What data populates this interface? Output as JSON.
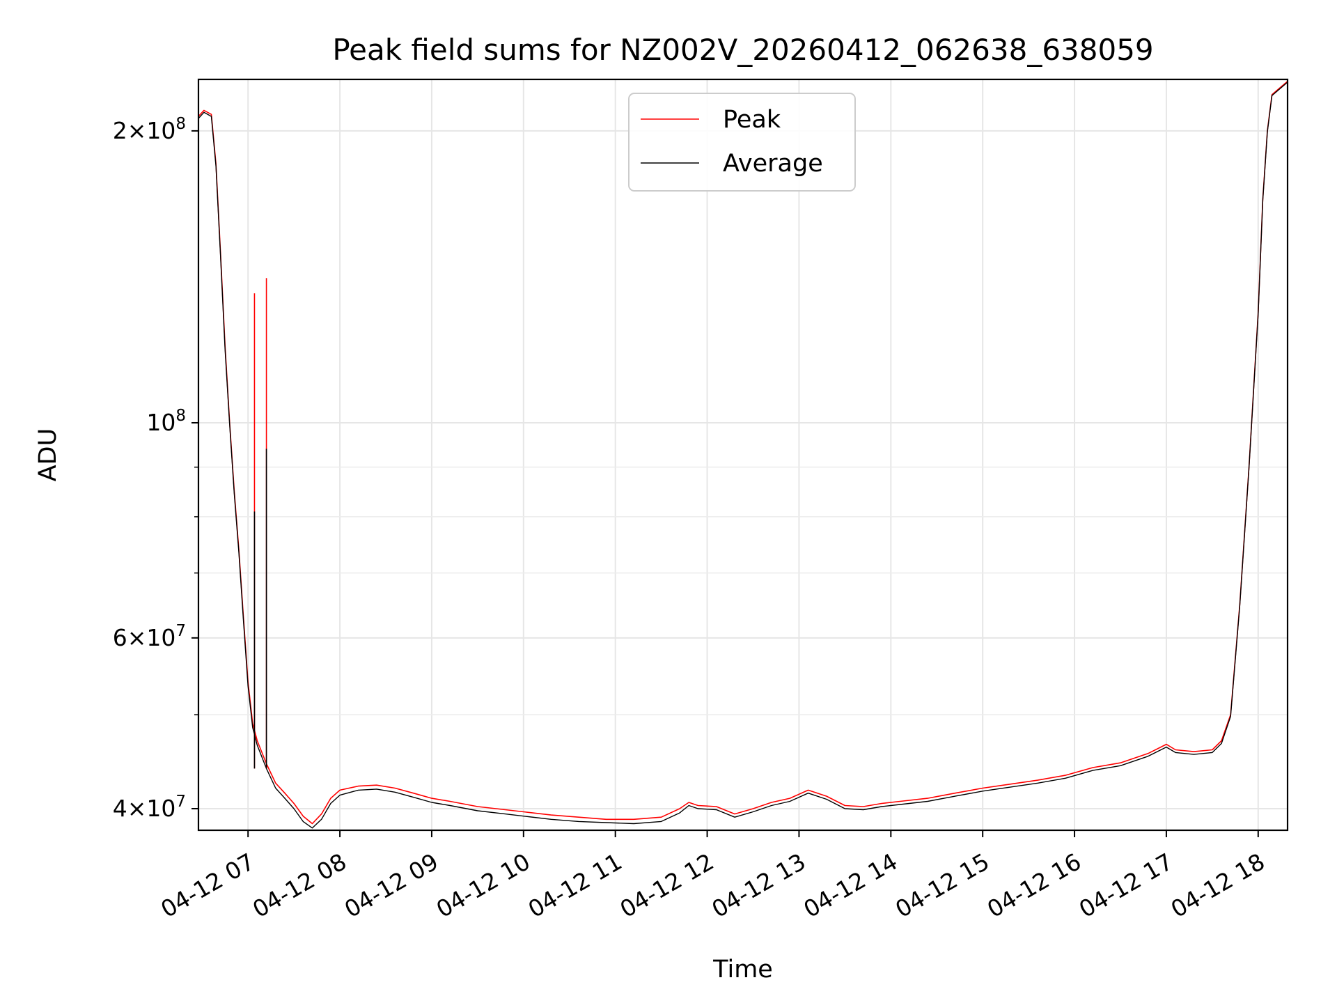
{
  "chart_data": {
    "type": "line",
    "title": "Peak field sums for NZ002V_20260412_062638_638059",
    "xlabel": "Time",
    "ylabel": "ADU",
    "yscale": "log",
    "grid": true,
    "legend_position": "top-center",
    "x_range_hours": [
      6.46,
      18.32
    ],
    "ylim": [
      38000000,
      226000000
    ],
    "x_ticks": [
      {
        "label": "04-12 07",
        "hour": 7
      },
      {
        "label": "04-12 08",
        "hour": 8
      },
      {
        "label": "04-12 09",
        "hour": 9
      },
      {
        "label": "04-12 10",
        "hour": 10
      },
      {
        "label": "04-12 11",
        "hour": 11
      },
      {
        "label": "04-12 12",
        "hour": 12
      },
      {
        "label": "04-12 13",
        "hour": 13
      },
      {
        "label": "04-12 14",
        "hour": 14
      },
      {
        "label": "04-12 15",
        "hour": 15
      },
      {
        "label": "04-12 16",
        "hour": 16
      },
      {
        "label": "04-12 17",
        "hour": 17
      },
      {
        "label": "04-12 18",
        "hour": 18
      }
    ],
    "y_ticks": [
      {
        "base": "4",
        "exp": "7",
        "value": 40000000
      },
      {
        "base": "6",
        "exp": "7",
        "value": 60000000
      },
      {
        "base": "",
        "exp": "8",
        "value": 100000000
      },
      {
        "base": "2",
        "exp": "8",
        "value": 200000000
      }
    ],
    "y_minor_ticks": [
      50000000,
      70000000,
      80000000,
      90000000
    ],
    "series": [
      {
        "name": "Peak",
        "color": "#ff0000",
        "points": [
          [
            6.46,
            207000000
          ],
          [
            6.52,
            210000000
          ],
          [
            6.6,
            208000000
          ],
          [
            6.65,
            185000000
          ],
          [
            6.7,
            150000000
          ],
          [
            6.75,
            120000000
          ],
          [
            6.8,
            100000000
          ],
          [
            6.85,
            85000000
          ],
          [
            6.9,
            74000000
          ],
          [
            6.95,
            63000000
          ],
          [
            7.0,
            54000000
          ],
          [
            7.05,
            49000000
          ],
          [
            7.1,
            47000000
          ],
          [
            7.2,
            44500000
          ],
          [
            7.3,
            42500000
          ],
          [
            7.4,
            41500000
          ],
          [
            7.5,
            40500000
          ],
          [
            7.6,
            39300000
          ],
          [
            7.7,
            38600000
          ],
          [
            7.8,
            39500000
          ],
          [
            7.9,
            41000000
          ],
          [
            8.0,
            41800000
          ],
          [
            8.2,
            42200000
          ],
          [
            8.4,
            42300000
          ],
          [
            8.6,
            42000000
          ],
          [
            8.8,
            41500000
          ],
          [
            9.0,
            41000000
          ],
          [
            9.2,
            40700000
          ],
          [
            9.5,
            40200000
          ],
          [
            9.8,
            39900000
          ],
          [
            10.0,
            39700000
          ],
          [
            10.3,
            39400000
          ],
          [
            10.6,
            39200000
          ],
          [
            10.9,
            39000000
          ],
          [
            11.2,
            39000000
          ],
          [
            11.5,
            39200000
          ],
          [
            11.7,
            40000000
          ],
          [
            11.8,
            40600000
          ],
          [
            11.9,
            40300000
          ],
          [
            12.1,
            40200000
          ],
          [
            12.3,
            39500000
          ],
          [
            12.5,
            40000000
          ],
          [
            12.7,
            40600000
          ],
          [
            12.9,
            41000000
          ],
          [
            13.1,
            41800000
          ],
          [
            13.3,
            41200000
          ],
          [
            13.5,
            40300000
          ],
          [
            13.7,
            40200000
          ],
          [
            13.9,
            40500000
          ],
          [
            14.1,
            40700000
          ],
          [
            14.4,
            41000000
          ],
          [
            14.7,
            41500000
          ],
          [
            15.0,
            42000000
          ],
          [
            15.3,
            42400000
          ],
          [
            15.6,
            42800000
          ],
          [
            15.9,
            43300000
          ],
          [
            16.2,
            44100000
          ],
          [
            16.5,
            44600000
          ],
          [
            16.8,
            45600000
          ],
          [
            17.0,
            46600000
          ],
          [
            17.1,
            46000000
          ],
          [
            17.3,
            45800000
          ],
          [
            17.5,
            46000000
          ],
          [
            17.6,
            47000000
          ],
          [
            17.7,
            50000000
          ],
          [
            17.8,
            65000000
          ],
          [
            17.9,
            90000000
          ],
          [
            18.0,
            130000000
          ],
          [
            18.05,
            170000000
          ],
          [
            18.1,
            200000000
          ],
          [
            18.15,
            218000000
          ],
          [
            18.32,
            225000000
          ]
        ]
      },
      {
        "name": "Average",
        "color": "#000000",
        "points": [
          [
            6.46,
            206000000
          ],
          [
            6.52,
            209000000
          ],
          [
            6.6,
            207000000
          ],
          [
            6.65,
            184000000
          ],
          [
            6.7,
            149000000
          ],
          [
            6.75,
            119000000
          ],
          [
            6.8,
            99500000
          ],
          [
            6.85,
            84500000
          ],
          [
            6.9,
            73500000
          ],
          [
            6.95,
            62500000
          ],
          [
            7.0,
            53500000
          ],
          [
            7.05,
            48500000
          ],
          [
            7.1,
            46500000
          ],
          [
            7.2,
            44000000
          ],
          [
            7.3,
            42000000
          ],
          [
            7.4,
            41000000
          ],
          [
            7.5,
            40000000
          ],
          [
            7.6,
            38800000
          ],
          [
            7.7,
            38200000
          ],
          [
            7.8,
            39000000
          ],
          [
            7.9,
            40500000
          ],
          [
            8.0,
            41300000
          ],
          [
            8.2,
            41800000
          ],
          [
            8.4,
            41900000
          ],
          [
            8.6,
            41600000
          ],
          [
            8.8,
            41100000
          ],
          [
            9.0,
            40600000
          ],
          [
            9.2,
            40300000
          ],
          [
            9.5,
            39800000
          ],
          [
            9.8,
            39500000
          ],
          [
            10.0,
            39300000
          ],
          [
            10.3,
            39000000
          ],
          [
            10.6,
            38800000
          ],
          [
            10.9,
            38700000
          ],
          [
            11.2,
            38600000
          ],
          [
            11.5,
            38800000
          ],
          [
            11.7,
            39600000
          ],
          [
            11.8,
            40300000
          ],
          [
            11.9,
            40000000
          ],
          [
            12.1,
            39900000
          ],
          [
            12.3,
            39200000
          ],
          [
            12.5,
            39700000
          ],
          [
            12.7,
            40300000
          ],
          [
            12.9,
            40700000
          ],
          [
            13.1,
            41500000
          ],
          [
            13.3,
            40900000
          ],
          [
            13.5,
            40000000
          ],
          [
            13.7,
            39900000
          ],
          [
            13.9,
            40200000
          ],
          [
            14.1,
            40400000
          ],
          [
            14.4,
            40700000
          ],
          [
            14.7,
            41200000
          ],
          [
            15.0,
            41700000
          ],
          [
            15.3,
            42100000
          ],
          [
            15.6,
            42500000
          ],
          [
            15.9,
            43000000
          ],
          [
            16.2,
            43800000
          ],
          [
            16.5,
            44300000
          ],
          [
            16.8,
            45300000
          ],
          [
            17.0,
            46300000
          ],
          [
            17.1,
            45700000
          ],
          [
            17.3,
            45500000
          ],
          [
            17.5,
            45700000
          ],
          [
            17.6,
            46700000
          ],
          [
            17.7,
            49800000
          ],
          [
            17.8,
            64800000
          ],
          [
            17.9,
            89800000
          ],
          [
            18.0,
            129500000
          ],
          [
            18.05,
            169500000
          ],
          [
            18.1,
            199500000
          ],
          [
            18.15,
            217500000
          ],
          [
            18.32,
            224500000
          ]
        ]
      }
    ],
    "spikes": [
      {
        "series": "Peak",
        "hour": 7.07,
        "value": 136000000
      },
      {
        "series": "Peak",
        "hour": 7.2,
        "value": 141000000
      },
      {
        "series": "Average",
        "hour": 7.07,
        "value": 81000000
      },
      {
        "series": "Average",
        "hour": 7.2,
        "value": 94000000
      }
    ]
  }
}
